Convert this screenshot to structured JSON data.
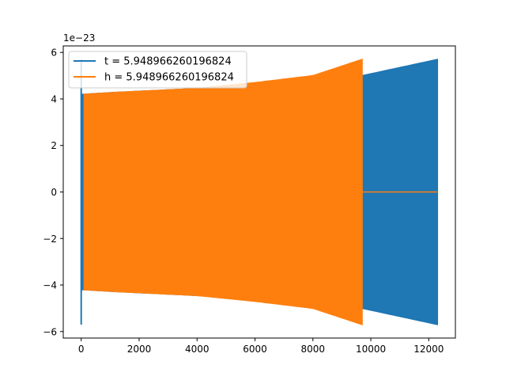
{
  "chart_data": {
    "type": "line",
    "title": "",
    "xlabel": "",
    "ylabel": "",
    "y_scale_label": "1e−23",
    "xlim": [
      -620,
      12920
    ],
    "ylim": [
      -6.28,
      6.28
    ],
    "x_ticks": [
      0,
      2000,
      4000,
      6000,
      8000,
      10000,
      12000
    ],
    "x_tick_labels": [
      "0",
      "2000",
      "4000",
      "6000",
      "8000",
      "10000",
      "12000"
    ],
    "y_ticks": [
      -6,
      -4,
      -2,
      0,
      2,
      4,
      6
    ],
    "y_tick_labels": [
      "−6",
      "−4",
      "−2",
      "0",
      "2",
      "4",
      "6"
    ],
    "grid": false,
    "legend_position": "upper-left",
    "series": [
      {
        "name": "t = 5.948966260196824",
        "color": "#1f77b4",
        "x_start": 0,
        "x_end": 12300,
        "initial_spike": 5.7,
        "envelope": [
          [
            100,
            4.2
          ],
          [
            1000,
            4.27
          ],
          [
            4000,
            4.45
          ],
          [
            6000,
            4.6
          ],
          [
            8000,
            4.85
          ],
          [
            9700,
            5.0
          ],
          [
            12300,
            5.7
          ]
        ]
      },
      {
        "name": "h = 5.948966260196824",
        "color": "#ff7f0e",
        "x_start": 100,
        "x_end": 9700,
        "flat_after_x": 9700,
        "flat_value": 0,
        "envelope": [
          [
            100,
            4.2
          ],
          [
            1000,
            4.27
          ],
          [
            4000,
            4.45
          ],
          [
            6000,
            4.7
          ],
          [
            8000,
            5.0
          ],
          [
            9700,
            5.7
          ]
        ]
      }
    ]
  }
}
